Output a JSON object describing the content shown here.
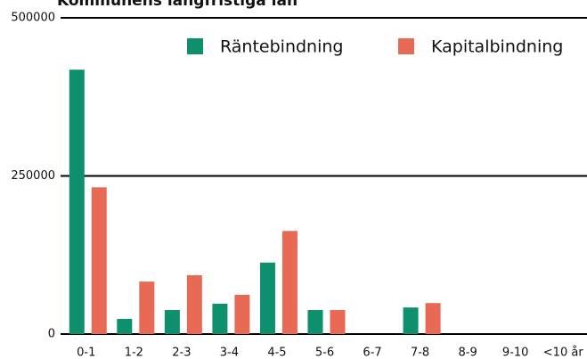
{
  "chart_data": {
    "type": "bar",
    "title": "Kommunens långfristiga lån",
    "categories": [
      "0-1",
      "1-2",
      "2-3",
      "3-4",
      "4-5",
      "5-6",
      "6-7",
      "7-8",
      "8-9",
      "9-10",
      "<10 år"
    ],
    "series": [
      {
        "name": "Räntebindning",
        "color": "#0e8f6e",
        "values": [
          418000,
          24000,
          38000,
          48000,
          113000,
          38000,
          0,
          42000,
          0,
          0,
          0
        ]
      },
      {
        "name": "Kapitalbindning",
        "color": "#e86a55",
        "values": [
          232000,
          83000,
          93000,
          62000,
          163000,
          38000,
          0,
          49000,
          0,
          0,
          0
        ]
      }
    ],
    "ylim": [
      0,
      500000
    ],
    "yticks": [
      0,
      250000,
      500000
    ],
    "grid": true,
    "legend": "top-right"
  }
}
